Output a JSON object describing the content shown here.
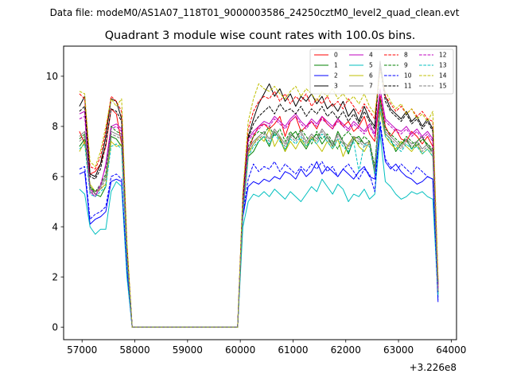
{
  "figure": {
    "suptitle": "Data file: modeM0/AS1A07_118T01_9000003586_24250cztM0_level2_quad_clean.evt",
    "offset_label": "+3.226e8"
  },
  "chart_data": {
    "type": "line",
    "title": "Quadrant 3 module wise count rates with 100.0s bins.",
    "xlabel": "",
    "ylabel": "",
    "xlim": [
      56650,
      64100
    ],
    "ylim": [
      -0.5,
      11.2
    ],
    "x_ticks": [
      57000,
      58000,
      59000,
      60000,
      61000,
      62000,
      63000,
      64000
    ],
    "x_tick_labels": [
      "57000",
      "58000",
      "59000",
      "60000",
      "61000",
      "62000",
      "63000",
      "64000"
    ],
    "y_ticks": [
      0,
      2,
      4,
      6,
      8,
      10
    ],
    "y_tick_labels": [
      "0",
      "2",
      "4",
      "6",
      "8",
      "10"
    ],
    "grid": false,
    "legend_placement": "top-right",
    "legend_columns": 4,
    "x": [
      56950,
      57050,
      57150,
      57250,
      57350,
      57450,
      57550,
      57650,
      57750,
      57850,
      57950,
      58050,
      58150,
      58250,
      58350,
      58450,
      58550,
      58650,
      58750,
      58850,
      58950,
      59050,
      59150,
      59250,
      59350,
      59450,
      59550,
      59650,
      59750,
      59850,
      59950,
      60050,
      60150,
      60250,
      60350,
      60450,
      60550,
      60650,
      60750,
      60850,
      60950,
      61050,
      61150,
      61250,
      61350,
      61450,
      61550,
      61650,
      61750,
      61850,
      61950,
      62050,
      62150,
      62250,
      62350,
      62450,
      62550,
      62650,
      62750,
      62850,
      62950,
      63050,
      63150,
      63250,
      63350,
      63450,
      63550,
      63650,
      63750
    ],
    "series": [
      {
        "name": "0",
        "color": "#ff0000",
        "dash": "solid",
        "values": [
          7.8,
          7.3,
          6.1,
          6.2,
          6.5,
          7.2,
          8.7,
          8.5,
          7.3,
          3.0,
          0,
          0,
          0,
          0,
          0,
          0,
          0,
          0,
          0,
          0,
          0,
          0,
          0,
          0,
          0,
          0,
          0,
          0,
          0,
          0,
          0,
          4.8,
          7.0,
          7.6,
          8.0,
          8.1,
          7.9,
          8.1,
          8.4,
          7.6,
          8.2,
          8.4,
          7.8,
          8.0,
          8.2,
          7.9,
          8.4,
          8.1,
          7.9,
          8.3,
          8.0,
          8.2,
          7.8,
          8.0,
          8.4,
          7.7,
          7.4,
          9.2,
          8.0,
          7.6,
          7.9,
          7.5,
          7.4,
          7.8,
          7.6,
          7.3,
          7.6,
          7.2,
          1.6
        ]
      },
      {
        "name": "1",
        "color": "#008000",
        "dash": "solid",
        "values": [
          7.2,
          7.5,
          5.6,
          5.3,
          5.2,
          5.6,
          7.6,
          7.5,
          7.2,
          2.8,
          0,
          0,
          0,
          0,
          0,
          0,
          0,
          0,
          0,
          0,
          0,
          0,
          0,
          0,
          0,
          0,
          0,
          0,
          0,
          0,
          0,
          4.5,
          6.8,
          7.0,
          7.4,
          7.6,
          7.2,
          7.8,
          7.5,
          7.0,
          7.6,
          7.8,
          7.4,
          7.1,
          7.5,
          7.7,
          7.3,
          7.6,
          7.2,
          7.8,
          7.4,
          6.9,
          7.5,
          7.6,
          7.3,
          7.4,
          6.1,
          8.9,
          7.7,
          7.5,
          7.0,
          7.3,
          7.5,
          7.1,
          7.4,
          7.6,
          7.2,
          7.0,
          1.3
        ]
      },
      {
        "name": "2",
        "color": "#0000ff",
        "dash": "solid",
        "values": [
          6.1,
          6.2,
          4.1,
          4.3,
          4.4,
          4.6,
          5.8,
          5.9,
          5.8,
          2.2,
          0,
          0,
          0,
          0,
          0,
          0,
          0,
          0,
          0,
          0,
          0,
          0,
          0,
          0,
          0,
          0,
          0,
          0,
          0,
          0,
          0,
          4.4,
          5.6,
          5.8,
          5.7,
          5.9,
          5.8,
          6.0,
          5.9,
          6.2,
          6.1,
          5.9,
          6.3,
          6.0,
          6.2,
          6.6,
          6.1,
          6.4,
          6.2,
          6.0,
          6.3,
          6.1,
          5.9,
          6.2,
          6.4,
          6.0,
          5.9,
          8.0,
          6.6,
          6.3,
          6.5,
          6.2,
          6.0,
          5.9,
          5.7,
          5.8,
          6.0,
          5.9,
          1.0
        ]
      },
      {
        "name": "3",
        "color": "#000000",
        "dash": "solid",
        "values": [
          8.8,
          9.2,
          6.1,
          6.0,
          6.5,
          7.6,
          9.1,
          9.0,
          8.3,
          3.2,
          0,
          0,
          0,
          0,
          0,
          0,
          0,
          0,
          0,
          0,
          0,
          0,
          0,
          0,
          0,
          0,
          0,
          0,
          0,
          0,
          0,
          5.2,
          7.6,
          8.3,
          8.9,
          9.3,
          9.7,
          9.2,
          9.5,
          9.0,
          9.3,
          8.8,
          9.2,
          9.0,
          9.3,
          8.9,
          9.2,
          8.7,
          8.9,
          8.6,
          9.0,
          8.4,
          8.7,
          8.2,
          8.8,
          8.3,
          8.0,
          10.6,
          9.2,
          8.7,
          8.5,
          8.3,
          8.6,
          8.2,
          8.4,
          8.0,
          8.3,
          7.9,
          1.8
        ]
      },
      {
        "name": "4",
        "color": "#bf00bf",
        "dash": "solid",
        "values": [
          8.5,
          8.6,
          5.4,
          5.2,
          5.6,
          6.5,
          8.0,
          8.1,
          7.9,
          2.9,
          0,
          0,
          0,
          0,
          0,
          0,
          0,
          0,
          0,
          0,
          0,
          0,
          0,
          0,
          0,
          0,
          0,
          0,
          0,
          0,
          0,
          4.9,
          7.5,
          7.8,
          8.0,
          8.2,
          8.1,
          8.4,
          8.2,
          8.0,
          8.3,
          8.5,
          8.2,
          8.0,
          8.3,
          8.1,
          8.4,
          8.2,
          8.0,
          8.3,
          8.1,
          7.9,
          8.2,
          8.0,
          7.8,
          8.1,
          7.7,
          9.5,
          8.3,
          8.1,
          7.9,
          7.8,
          8.0,
          7.7,
          7.9,
          7.6,
          7.8,
          7.5,
          1.5
        ]
      },
      {
        "name": "5",
        "color": "#00bfbf",
        "dash": "solid",
        "values": [
          5.5,
          5.3,
          4.0,
          3.7,
          3.9,
          3.9,
          5.4,
          5.8,
          5.6,
          2.0,
          0,
          0,
          0,
          0,
          0,
          0,
          0,
          0,
          0,
          0,
          0,
          0,
          0,
          0,
          0,
          0,
          0,
          0,
          0,
          0,
          0,
          4.0,
          5.0,
          5.3,
          5.2,
          5.4,
          5.2,
          5.5,
          5.3,
          5.1,
          5.4,
          5.2,
          5.0,
          5.3,
          5.6,
          5.4,
          5.9,
          5.6,
          5.3,
          5.7,
          5.5,
          5.0,
          5.3,
          5.2,
          5.5,
          5.1,
          5.3,
          7.7,
          5.8,
          5.6,
          5.3,
          5.1,
          5.2,
          5.4,
          5.3,
          5.4,
          5.2,
          5.1,
          1.2
        ]
      },
      {
        "name": "6",
        "color": "#bfbf00",
        "dash": "solid",
        "values": [
          7.0,
          7.4,
          5.7,
          5.4,
          5.5,
          5.7,
          7.4,
          7.2,
          7.3,
          2.8,
          0,
          0,
          0,
          0,
          0,
          0,
          0,
          0,
          0,
          0,
          0,
          0,
          0,
          0,
          0,
          0,
          0,
          0,
          0,
          0,
          0,
          4.6,
          6.9,
          7.3,
          7.6,
          7.4,
          7.9,
          7.2,
          7.6,
          7.0,
          7.4,
          7.1,
          7.5,
          7.2,
          7.6,
          7.3,
          7.0,
          7.4,
          7.1,
          7.5,
          6.8,
          7.3,
          7.6,
          7.2,
          7.0,
          7.4,
          6.2,
          8.6,
          7.6,
          7.3,
          7.1,
          7.4,
          7.2,
          7.0,
          7.3,
          6.9,
          7.1,
          6.8,
          1.4
        ]
      },
      {
        "name": "7",
        "color": "#7f7f7f",
        "dash": "solid",
        "values": [
          7.6,
          7.8,
          5.5,
          5.4,
          5.6,
          6.0,
          7.8,
          7.7,
          7.6,
          2.9,
          0,
          0,
          0,
          0,
          0,
          0,
          0,
          0,
          0,
          0,
          0,
          0,
          0,
          0,
          0,
          0,
          0,
          0,
          0,
          0,
          0,
          4.7,
          7.1,
          7.4,
          7.6,
          7.8,
          7.5,
          7.9,
          7.6,
          7.3,
          7.7,
          7.5,
          7.8,
          7.4,
          7.7,
          7.5,
          7.9,
          7.6,
          7.3,
          7.7,
          7.4,
          7.2,
          7.6,
          7.5,
          7.3,
          7.4,
          6.3,
          9.0,
          7.8,
          7.6,
          7.4,
          7.2,
          7.5,
          7.3,
          7.4,
          7.1,
          7.3,
          7.0,
          1.4
        ]
      },
      {
        "name": "8",
        "color": "#ff0000",
        "dash": "dashed",
        "values": [
          9.3,
          9.1,
          6.4,
          6.3,
          6.8,
          7.8,
          9.2,
          9.0,
          8.6,
          3.3,
          0,
          0,
          0,
          0,
          0,
          0,
          0,
          0,
          0,
          0,
          0,
          0,
          0,
          0,
          0,
          0,
          0,
          0,
          0,
          0,
          0,
          5.3,
          7.9,
          8.6,
          9.0,
          9.2,
          9.1,
          9.4,
          9.0,
          9.3,
          8.9,
          9.2,
          9.0,
          9.3,
          8.8,
          9.1,
          8.9,
          9.2,
          8.8,
          9.0,
          8.7,
          9.1,
          8.8,
          8.5,
          8.9,
          8.6,
          8.3,
          10.3,
          9.2,
          8.9,
          8.6,
          8.8,
          8.5,
          8.7,
          8.4,
          8.6,
          8.3,
          8.2,
          1.9
        ]
      },
      {
        "name": "9",
        "color": "#008000",
        "dash": "dashed",
        "values": [
          7.5,
          7.7,
          5.6,
          5.4,
          5.7,
          6.1,
          8.0,
          7.8,
          7.7,
          2.9,
          0,
          0,
          0,
          0,
          0,
          0,
          0,
          0,
          0,
          0,
          0,
          0,
          0,
          0,
          0,
          0,
          0,
          0,
          0,
          0,
          0,
          4.7,
          7.2,
          7.6,
          7.8,
          7.7,
          8.0,
          7.6,
          7.9,
          7.4,
          7.8,
          7.5,
          7.9,
          7.6,
          7.3,
          7.8,
          7.5,
          7.7,
          7.4,
          7.1,
          7.6,
          7.8,
          7.5,
          7.3,
          7.6,
          7.4,
          6.4,
          9.1,
          7.9,
          7.7,
          7.5,
          7.3,
          7.6,
          7.4,
          7.2,
          7.5,
          7.3,
          7.1,
          1.4
        ]
      },
      {
        "name": "10",
        "color": "#0000ff",
        "dash": "dashed",
        "values": [
          6.3,
          6.4,
          4.3,
          4.5,
          4.6,
          4.8,
          6.0,
          6.1,
          5.9,
          2.3,
          0,
          0,
          0,
          0,
          0,
          0,
          0,
          0,
          0,
          0,
          0,
          0,
          0,
          0,
          0,
          0,
          0,
          0,
          0,
          0,
          0,
          4.5,
          5.9,
          6.5,
          6.2,
          6.4,
          6.3,
          6.6,
          6.2,
          6.5,
          6.3,
          6.1,
          6.4,
          6.2,
          6.5,
          6.3,
          6.6,
          6.2,
          6.4,
          6.0,
          6.3,
          6.5,
          6.2,
          5.9,
          6.3,
          6.1,
          5.4,
          8.2,
          6.7,
          6.4,
          6.2,
          6.5,
          6.3,
          6.1,
          6.4,
          6.2,
          6.0,
          5.9,
          1.1
        ]
      },
      {
        "name": "11",
        "color": "#000000",
        "dash": "dashed",
        "values": [
          8.6,
          8.8,
          6.0,
          5.9,
          6.3,
          7.3,
          8.7,
          8.6,
          8.2,
          3.1,
          0,
          0,
          0,
          0,
          0,
          0,
          0,
          0,
          0,
          0,
          0,
          0,
          0,
          0,
          0,
          0,
          0,
          0,
          0,
          0,
          0,
          5.0,
          7.5,
          8.1,
          8.4,
          8.6,
          8.8,
          8.5,
          8.9,
          8.6,
          8.7,
          8.5,
          8.8,
          8.4,
          8.7,
          8.5,
          8.8,
          8.4,
          8.6,
          8.3,
          8.6,
          8.2,
          8.5,
          8.1,
          8.6,
          8.2,
          7.9,
          10.4,
          9.0,
          8.6,
          8.4,
          8.2,
          8.5,
          8.1,
          8.3,
          7.9,
          8.2,
          7.8,
          1.7
        ]
      },
      {
        "name": "12",
        "color": "#bf00bf",
        "dash": "dashed",
        "values": [
          8.3,
          8.4,
          5.5,
          5.3,
          5.7,
          6.4,
          7.9,
          8.0,
          7.8,
          2.9,
          0,
          0,
          0,
          0,
          0,
          0,
          0,
          0,
          0,
          0,
          0,
          0,
          0,
          0,
          0,
          0,
          0,
          0,
          0,
          0,
          0,
          4.8,
          7.4,
          7.7,
          7.9,
          8.1,
          8.0,
          8.3,
          8.1,
          7.9,
          8.2,
          8.4,
          8.1,
          7.9,
          8.2,
          8.0,
          8.3,
          8.1,
          7.9,
          8.2,
          8.0,
          7.8,
          8.1,
          7.9,
          7.7,
          8.0,
          7.6,
          9.4,
          8.2,
          8.0,
          7.8,
          7.7,
          7.9,
          7.6,
          7.8,
          7.5,
          7.7,
          7.4,
          1.5
        ]
      },
      {
        "name": "13",
        "color": "#00bfbf",
        "dash": "dashed",
        "values": [
          7.1,
          7.3,
          5.3,
          5.2,
          5.4,
          5.6,
          7.2,
          7.3,
          7.1,
          2.7,
          0,
          0,
          0,
          0,
          0,
          0,
          0,
          0,
          0,
          0,
          0,
          0,
          0,
          0,
          0,
          0,
          0,
          0,
          0,
          0,
          0,
          4.5,
          6.8,
          7.2,
          7.4,
          7.6,
          7.3,
          7.7,
          7.4,
          7.1,
          7.5,
          7.3,
          7.6,
          7.2,
          7.5,
          7.3,
          7.7,
          7.4,
          7.1,
          7.5,
          7.2,
          7.0,
          7.4,
          6.2,
          7.3,
          7.2,
          6.1,
          8.8,
          7.6,
          7.4,
          7.2,
          7.0,
          7.3,
          7.1,
          7.2,
          6.9,
          7.1,
          6.8,
          1.3
        ]
      },
      {
        "name": "14",
        "color": "#bfbf00",
        "dash": "dashed",
        "values": [
          9.4,
          9.3,
          6.6,
          6.4,
          7.0,
          8.0,
          9.1,
          8.8,
          9.1,
          3.4,
          0,
          0,
          0,
          0,
          0,
          0,
          0,
          0,
          0,
          0,
          0,
          0,
          0,
          0,
          0,
          0,
          0,
          0,
          0,
          0,
          0,
          5.4,
          8.2,
          9.1,
          9.7,
          9.5,
          9.4,
          9.6,
          9.3,
          9.1,
          9.4,
          9.6,
          9.2,
          9.5,
          9.3,
          9.0,
          9.4,
          9.2,
          9.5,
          9.1,
          9.3,
          9.0,
          9.2,
          8.9,
          9.3,
          8.8,
          8.5,
          10.2,
          9.4,
          9.0,
          8.7,
          8.9,
          8.5,
          8.7,
          8.3,
          8.5,
          8.2,
          8.6,
          1.9
        ]
      },
      {
        "name": "15",
        "color": "#7f7f7f",
        "dash": "dashed",
        "values": [
          7.4,
          7.6,
          5.4,
          5.3,
          5.5,
          5.9,
          7.7,
          7.6,
          7.5,
          2.8,
          0,
          0,
          0,
          0,
          0,
          0,
          0,
          0,
          0,
          0,
          0,
          0,
          0,
          0,
          0,
          0,
          0,
          0,
          0,
          0,
          0,
          4.6,
          7.0,
          7.3,
          7.5,
          7.7,
          7.4,
          7.8,
          7.5,
          7.2,
          7.6,
          7.4,
          7.7,
          7.3,
          7.6,
          7.4,
          7.8,
          7.5,
          7.2,
          7.6,
          7.3,
          7.1,
          7.5,
          7.4,
          7.2,
          7.3,
          6.2,
          8.9,
          7.7,
          7.5,
          7.3,
          7.1,
          7.4,
          7.2,
          7.3,
          7.0,
          7.2,
          6.9,
          1.4
        ]
      }
    ]
  }
}
